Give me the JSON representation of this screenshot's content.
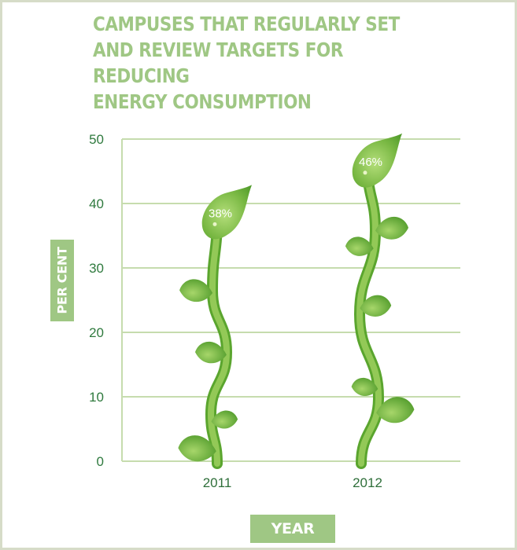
{
  "chart_data": {
    "type": "bar",
    "title": "CAMPUSES THAT REGULARLY SET\nAND REVIEW TARGETS FOR REDUCING\nENERGY CONSUMPTION",
    "xlabel": "YEAR",
    "ylabel": "PER CENT",
    "categories": [
      "2011",
      "2012"
    ],
    "values": [
      38,
      46
    ],
    "data_labels": [
      "38%",
      "46%"
    ],
    "ylim": [
      0,
      50
    ],
    "yticks": [
      0,
      10,
      20,
      30,
      40,
      50
    ],
    "grid": true,
    "legend": "none",
    "colors": {
      "title": "#9fc784",
      "axis_box": "#9fc784",
      "grid": "#c6dcae",
      "tick_text": "#2f7a3e",
      "leaf_dark": "#4f9a2a",
      "leaf_light": "#9ccf5c"
    }
  }
}
